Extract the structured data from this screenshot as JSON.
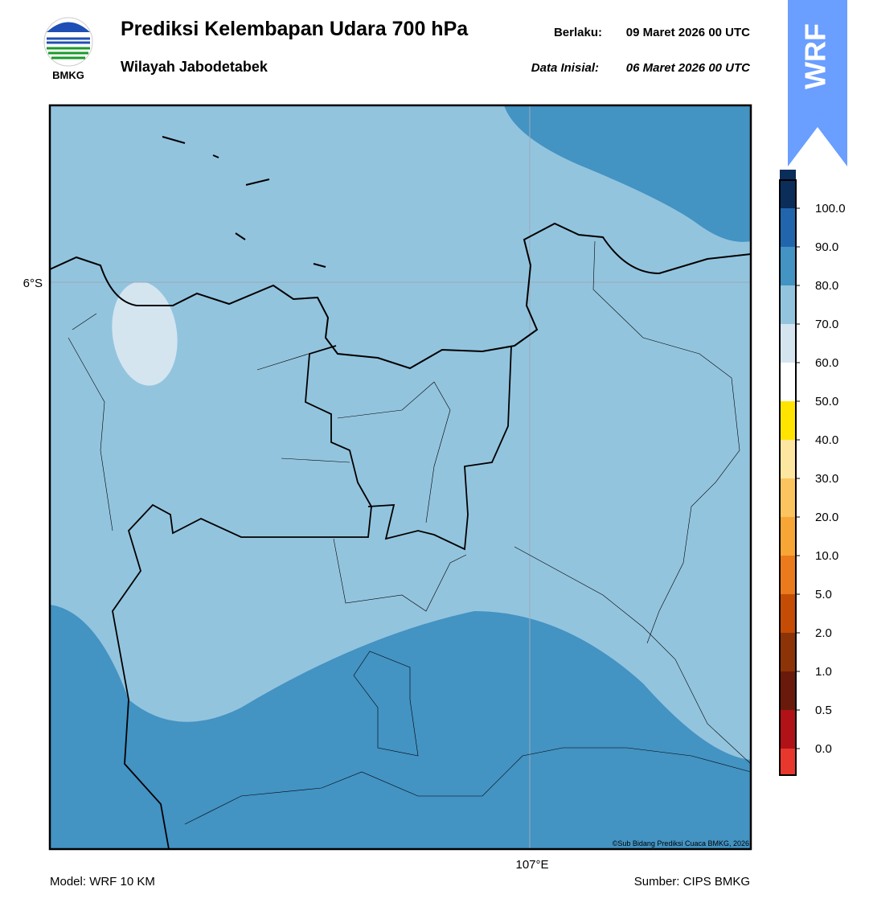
{
  "header": {
    "logo": "BMKG",
    "title": "Prediksi Kelembapan Udara 700 hPa",
    "subtitle": "Wilayah Jabodetabek",
    "valid_label": "Berlaku:",
    "valid": "09 Maret 2026 00 UTC",
    "init_label": "Data Inisial:",
    "init": "06 Maret 2026 00 UTC",
    "badge": "WRF"
  },
  "map": {
    "lat_label": "6°S",
    "lon_label": "107°E",
    "credit": "©Sub Bidang Prediksi Cuaca BMKG, 2026"
  },
  "colorbar": {
    "ticks": [
      "0.0",
      "0.5",
      "1.0",
      "2.0",
      "5.0",
      "10.0",
      "20.0",
      "30.0",
      "40.0",
      "50.0",
      "60.0",
      "70.0",
      "80.0",
      "90.0",
      "100.0"
    ],
    "colors": [
      "#e8372c",
      "#b01218",
      "#6a1a0a",
      "#8c3308",
      "#c44c04",
      "#ea7a1c",
      "#f7a535",
      "#fcc45e",
      "#fde6a0",
      "#ffe400",
      "#ffffff",
      "#d4e5f0",
      "#93c4de",
      "#4393c3",
      "#2166ac",
      "#0b2d5a",
      "#2b0a4e"
    ]
  },
  "footer": {
    "model": "Model: WRF 10 KM",
    "source": "Sumber: CIPS BMKG"
  }
}
